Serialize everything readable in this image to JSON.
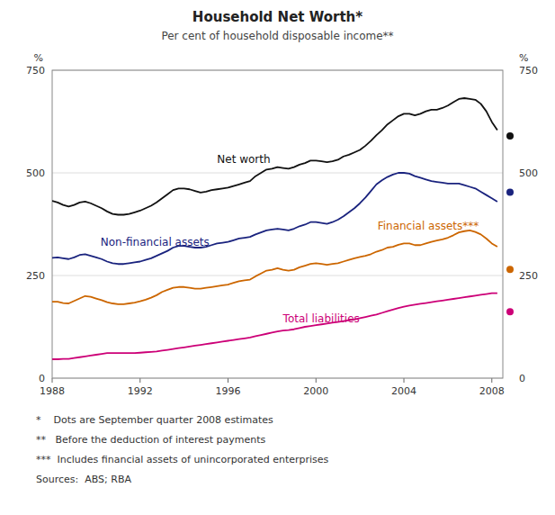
{
  "chart_data": {
    "type": "line",
    "title": "Household Net Worth*",
    "subtitle": "Per cent of household disposable income**",
    "ylabel": "%",
    "y2label": "%",
    "xlim": [
      1988,
      2008.5
    ],
    "xticks": [
      1988,
      1992,
      1996,
      2000,
      2004,
      2008
    ],
    "ylim": [
      0,
      750
    ],
    "yticks": [
      0,
      250,
      500,
      750
    ],
    "y2lim": [
      0,
      750
    ],
    "y2ticks": [
      0,
      250,
      500,
      750
    ],
    "grid": true,
    "x": [
      1988.0,
      1988.25,
      1988.5,
      1988.75,
      1989.0,
      1989.25,
      1989.5,
      1989.75,
      1990.0,
      1990.25,
      1990.5,
      1990.75,
      1991.0,
      1991.25,
      1991.5,
      1991.75,
      1992.0,
      1992.25,
      1992.5,
      1992.75,
      1993.0,
      1993.25,
      1993.5,
      1993.75,
      1994.0,
      1994.25,
      1994.5,
      1994.75,
      1995.0,
      1995.25,
      1995.5,
      1995.75,
      1996.0,
      1996.25,
      1996.5,
      1996.75,
      1997.0,
      1997.25,
      1997.5,
      1997.75,
      1998.0,
      1998.25,
      1998.5,
      1998.75,
      1999.0,
      1999.25,
      1999.5,
      1999.75,
      2000.0,
      2000.25,
      2000.5,
      2000.75,
      2001.0,
      2001.25,
      2001.5,
      2001.75,
      2002.0,
      2002.25,
      2002.5,
      2002.75,
      2003.0,
      2003.25,
      2003.5,
      2003.75,
      2004.0,
      2004.25,
      2004.5,
      2004.75,
      2005.0,
      2005.25,
      2005.5,
      2005.75,
      2006.0,
      2006.25,
      2006.5,
      2006.75,
      2007.0,
      2007.25,
      2007.5,
      2007.75,
      2008.0,
      2008.25
    ],
    "series": [
      {
        "name": "Net worth",
        "color": "#111111",
        "label_x": 1995.5,
        "label_y": 532,
        "estimate": 590,
        "values": [
          432,
          428,
          422,
          418,
          422,
          428,
          430,
          426,
          420,
          414,
          406,
          400,
          398,
          398,
          400,
          404,
          408,
          414,
          420,
          428,
          438,
          448,
          458,
          462,
          462,
          460,
          456,
          452,
          454,
          458,
          460,
          462,
          464,
          468,
          472,
          476,
          480,
          492,
          500,
          508,
          510,
          514,
          512,
          510,
          514,
          520,
          524,
          530,
          530,
          528,
          526,
          528,
          532,
          540,
          544,
          550,
          556,
          566,
          578,
          592,
          604,
          618,
          628,
          638,
          644,
          644,
          640,
          644,
          650,
          654,
          654,
          658,
          664,
          672,
          680,
          682,
          680,
          678,
          668,
          650,
          624,
          604
        ]
      },
      {
        "name": "Non-financial assets",
        "color": "#1a237e",
        "label_x": 1990.2,
        "label_y": 332,
        "estimate": 453,
        "values": [
          293,
          294,
          292,
          290,
          294,
          300,
          302,
          298,
          294,
          290,
          284,
          280,
          278,
          278,
          280,
          282,
          284,
          288,
          292,
          298,
          304,
          310,
          318,
          322,
          322,
          320,
          318,
          318,
          320,
          324,
          328,
          330,
          332,
          336,
          340,
          342,
          344,
          350,
          355,
          360,
          362,
          364,
          362,
          360,
          364,
          370,
          374,
          380,
          380,
          378,
          376,
          380,
          386,
          394,
          404,
          414,
          426,
          440,
          456,
          472,
          482,
          490,
          496,
          500,
          500,
          498,
          492,
          488,
          484,
          480,
          478,
          476,
          474,
          474,
          474,
          470,
          466,
          462,
          454,
          446,
          438,
          430
        ]
      },
      {
        "name": "Financial assets***",
        "color": "#cc6600",
        "label_x": 2002.8,
        "label_y": 370,
        "estimate": 265,
        "values": [
          186,
          186,
          183,
          182,
          188,
          194,
          200,
          198,
          194,
          190,
          185,
          182,
          180,
          180,
          182,
          184,
          187,
          191,
          196,
          202,
          210,
          215,
          220,
          222,
          222,
          220,
          218,
          218,
          220,
          222,
          224,
          226,
          228,
          232,
          236,
          238,
          240,
          248,
          255,
          262,
          264,
          268,
          264,
          262,
          264,
          270,
          274,
          278,
          280,
          278,
          276,
          278,
          280,
          284,
          288,
          292,
          295,
          298,
          302,
          308,
          312,
          318,
          320,
          325,
          328,
          328,
          324,
          324,
          328,
          332,
          335,
          338,
          342,
          348,
          355,
          358,
          360,
          356,
          350,
          340,
          328,
          320
        ]
      },
      {
        "name": "Total liabilities",
        "color": "#cc0077",
        "label_x": 1998.5,
        "label_y": 145,
        "estimate": 162,
        "values": [
          46,
          46,
          47,
          47,
          49,
          51,
          53,
          55,
          57,
          59,
          61,
          61,
          61,
          61,
          61,
          61,
          62,
          63,
          64,
          65,
          67,
          69,
          71,
          73,
          75,
          77,
          79,
          81,
          83,
          85,
          87,
          89,
          91,
          93,
          95,
          97,
          99,
          102,
          105,
          108,
          111,
          114,
          116,
          117,
          119,
          122,
          125,
          127,
          129,
          131,
          133,
          135,
          137,
          139,
          141,
          143,
          146,
          149,
          152,
          155,
          159,
          163,
          167,
          171,
          174,
          177,
          179,
          181,
          183,
          185,
          187,
          189,
          191,
          193,
          195,
          197,
          199,
          201,
          203,
          205,
          207,
          207
        ]
      }
    ],
    "footnotes": [
      "*    Dots are September quarter 2008 estimates",
      "**   Before the deduction of interest payments",
      "***  Includes financial assets of unincorporated enterprises",
      "Sources:  ABS; RBA"
    ]
  }
}
